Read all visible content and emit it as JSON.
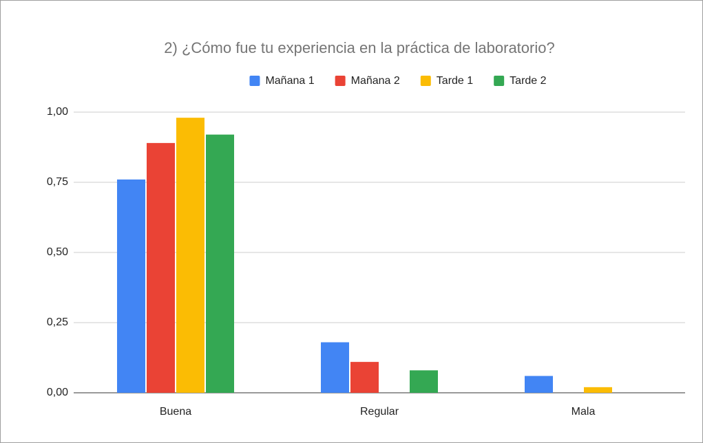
{
  "chart_data": {
    "type": "bar",
    "title": "2) ¿Cómo fue tu experiencia en la práctica de laboratorio?",
    "categories": [
      "Buena",
      "Regular",
      "Mala"
    ],
    "series": [
      {
        "name": "Mañana 1",
        "color": "#4285f4",
        "values": [
          0.76,
          0.18,
          0.06
        ]
      },
      {
        "name": "Mañana 2",
        "color": "#ea4335",
        "values": [
          0.89,
          0.11,
          0
        ]
      },
      {
        "name": "Tarde 1",
        "color": "#fbbc04",
        "values": [
          0.98,
          0,
          0.02
        ]
      },
      {
        "name": "Tarde 2",
        "color": "#34a853",
        "values": [
          0.92,
          0.08,
          0
        ]
      }
    ],
    "ylim": [
      0,
      1
    ],
    "yticks": [
      {
        "value": 0,
        "label": "0,00"
      },
      {
        "value": 0.25,
        "label": "0,25"
      },
      {
        "value": 0.5,
        "label": "0,50"
      },
      {
        "value": 0.75,
        "label": "0,75"
      },
      {
        "value": 1,
        "label": "1,00"
      }
    ],
    "grid": true,
    "legend": "top"
  }
}
